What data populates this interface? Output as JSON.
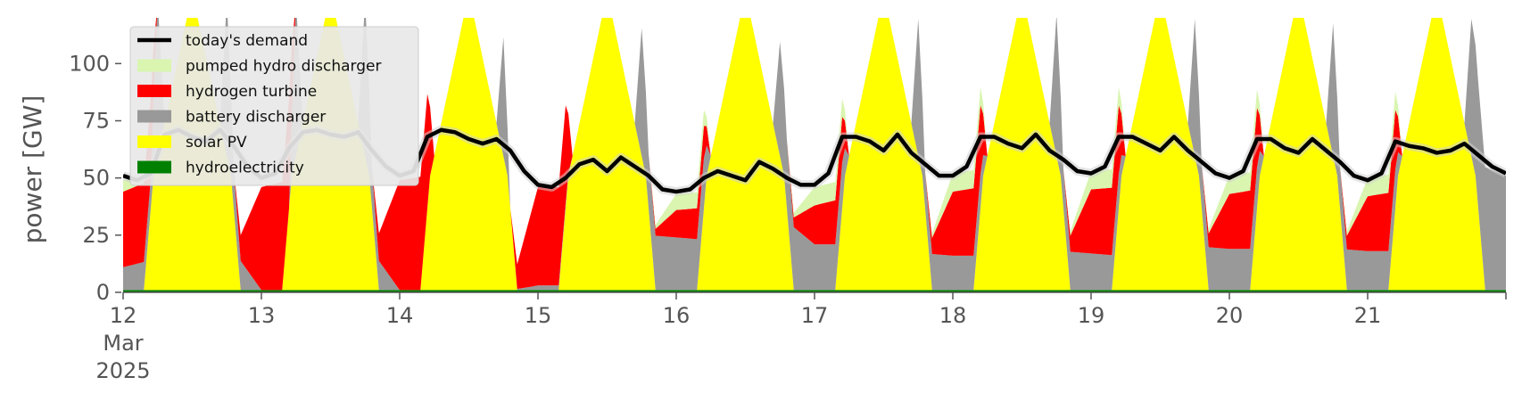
{
  "chart_data": {
    "type": "area",
    "ylabel": "power [GW]",
    "xlabel": "",
    "ylim": [
      0,
      120
    ],
    "xlim": [
      0,
      10
    ],
    "y_ticks": [
      0,
      25,
      50,
      75,
      100
    ],
    "x_ticks": [
      {
        "pos": 0,
        "lines": [
          "12",
          "Mar",
          "2025"
        ]
      },
      {
        "pos": 1,
        "lines": [
          "13"
        ]
      },
      {
        "pos": 2,
        "lines": [
          "14"
        ]
      },
      {
        "pos": 3,
        "lines": [
          "15"
        ]
      },
      {
        "pos": 4,
        "lines": [
          "16"
        ]
      },
      {
        "pos": 5,
        "lines": [
          "17"
        ]
      },
      {
        "pos": 6,
        "lines": [
          "18"
        ]
      },
      {
        "pos": 7,
        "lines": [
          "19"
        ]
      },
      {
        "pos": 8,
        "lines": [
          "20"
        ]
      },
      {
        "pos": 9,
        "lines": [
          "21"
        ]
      },
      {
        "pos": 10,
        "lines": [
          ""
        ]
      }
    ],
    "grid": false,
    "legend_placement": "top-left",
    "background_color": "#ffffff",
    "legend": [
      {
        "label": "today's demand",
        "color": "#000000",
        "kind": "line"
      },
      {
        "label": "pumped hydro discharger",
        "color": "#d9f5b0",
        "kind": "patch"
      },
      {
        "label": "hydrogen turbine",
        "color": "#ff0000",
        "kind": "patch"
      },
      {
        "label": "battery discharger",
        "color": "#999999",
        "kind": "patch"
      },
      {
        "label": "solar PV",
        "color": "#ffff00",
        "kind": "patch"
      },
      {
        "label": "hydroelectricity",
        "color": "#008000",
        "kind": "patch"
      }
    ],
    "stack_order": [
      "hydroelectricity",
      "solar PV",
      "battery discharger",
      "hydrogen turbine",
      "pumped hydro discharger"
    ],
    "series": [
      {
        "name": "hydroelectricity",
        "color": "#008000",
        "x": [
          0,
          10
        ],
        "values": [
          1,
          1
        ]
      },
      {
        "name": "solar PV",
        "color": "#ffff00",
        "x": [
          0,
          0.15,
          0.22,
          0.5,
          0.78,
          0.85,
          1,
          1.15,
          1.22,
          1.5,
          1.78,
          1.85,
          2,
          2.15,
          2.22,
          2.5,
          2.78,
          2.85,
          3,
          3.15,
          3.22,
          3.5,
          3.78,
          3.85,
          4,
          4.15,
          4.22,
          4.5,
          4.78,
          4.85,
          5,
          5.15,
          5.22,
          5.5,
          5.78,
          5.85,
          6,
          6.15,
          6.22,
          6.5,
          6.78,
          6.85,
          7,
          7.15,
          7.22,
          7.5,
          7.78,
          7.85,
          8,
          8.15,
          8.22,
          8.5,
          8.78,
          8.85,
          9,
          9.15,
          9.22,
          9.5,
          9.78,
          9.85,
          10
        ],
        "values": [
          0,
          0,
          50,
          130,
          50,
          0,
          0,
          0,
          50,
          130,
          50,
          0,
          0,
          0,
          50,
          130,
          50,
          0,
          0,
          0,
          50,
          130,
          50,
          0,
          0,
          0,
          50,
          130,
          50,
          0,
          0,
          0,
          50,
          130,
          50,
          0,
          0,
          0,
          50,
          130,
          50,
          0,
          0,
          0,
          50,
          130,
          50,
          0,
          0,
          0,
          50,
          130,
          50,
          0,
          0,
          0,
          50,
          130,
          50,
          0,
          0
        ]
      },
      {
        "name": "battery discharger",
        "color": "#999999",
        "x": [
          0,
          0.2,
          0.25,
          0.3,
          0.7,
          0.75,
          0.8,
          1,
          1.2,
          1.25,
          1.3,
          1.7,
          1.75,
          1.8,
          2,
          2.2,
          2.25,
          2.3,
          2.7,
          2.75,
          2.8,
          3,
          3.2,
          3.25,
          3.3,
          3.7,
          3.75,
          3.8,
          4,
          4.2,
          4.25,
          4.3,
          4.7,
          4.75,
          4.8,
          5,
          5.2,
          5.25,
          5.3,
          5.7,
          5.75,
          5.8,
          6,
          6.2,
          6.25,
          6.3,
          6.7,
          6.75,
          6.8,
          7,
          7.2,
          7.25,
          7.3,
          7.7,
          7.75,
          7.8,
          8,
          8.2,
          8.25,
          8.3,
          8.7,
          8.75,
          8.8,
          9,
          9.2,
          9.25,
          9.3,
          9.7,
          9.75,
          9.8,
          10
        ],
        "values": [
          10,
          13,
          68,
          0,
          0,
          68,
          17,
          0,
          0,
          68,
          0,
          0,
          68,
          17,
          0,
          0,
          0,
          0,
          0,
          52,
          0,
          2,
          2,
          0,
          0,
          0,
          56,
          24,
          23,
          22,
          0,
          0,
          0,
          50,
          30,
          20,
          20,
          0,
          0,
          0,
          60,
          16,
          15,
          15,
          0,
          0,
          0,
          62,
          17,
          16,
          15,
          0,
          0,
          0,
          60,
          19,
          18,
          18,
          0,
          0,
          0,
          58,
          18,
          17,
          17,
          0,
          0,
          0,
          60,
          55,
          50
        ]
      },
      {
        "name": "hydrogen turbine",
        "color": "#ff0000",
        "x": [
          0,
          0.2,
          0.25,
          0.3,
          0.7,
          0.75,
          0.8,
          1,
          1.2,
          1.25,
          1.3,
          1.7,
          1.75,
          1.8,
          2,
          2.2,
          2.25,
          2.3,
          2.7,
          2.75,
          2.8,
          3,
          3.2,
          3.25,
          3.3,
          3.7,
          3.75,
          3.8,
          4,
          4.2,
          4.25,
          4.3,
          4.7,
          4.75,
          4.8,
          5,
          5.2,
          5.25,
          5.3,
          5.7,
          5.75,
          5.8,
          6,
          6.2,
          6.25,
          6.3,
          6.7,
          6.75,
          6.8,
          7,
          7.2,
          7.25,
          7.3,
          7.7,
          7.75,
          7.8,
          8,
          8.2,
          8.25,
          8.3,
          8.7,
          8.75,
          8.8,
          9,
          9.2,
          9.25,
          9.3,
          9.7,
          9.75,
          9.8,
          10
        ],
        "values": [
          33,
          35,
          0,
          0,
          0,
          0,
          0,
          45,
          48,
          0,
          0,
          0,
          0,
          0,
          48,
          50,
          0,
          0,
          0,
          0,
          0,
          43,
          43,
          0,
          0,
          0,
          0,
          0,
          12,
          14,
          0,
          0,
          0,
          0,
          0,
          17,
          20,
          0,
          0,
          0,
          0,
          0,
          28,
          30,
          0,
          0,
          0,
          0,
          0,
          28,
          30,
          0,
          0,
          0,
          0,
          0,
          24,
          26,
          0,
          0,
          0,
          0,
          0,
          24,
          26,
          0,
          0,
          0,
          0,
          0,
          0
        ]
      },
      {
        "name": "pumped hydro discharger",
        "color": "#d9f5b0",
        "x": [
          0,
          0.2,
          0.25,
          0.3,
          0.7,
          0.75,
          0.8,
          1,
          1.2,
          1.25,
          1.3,
          1.7,
          1.75,
          1.8,
          2,
          2.2,
          2.25,
          2.3,
          2.7,
          2.75,
          2.8,
          3,
          3.2,
          3.25,
          3.3,
          3.7,
          3.75,
          3.8,
          4,
          4.2,
          4.25,
          4.3,
          4.7,
          4.75,
          4.8,
          5,
          5.2,
          5.25,
          5.3,
          5.7,
          5.75,
          5.8,
          6,
          6.2,
          6.25,
          6.3,
          6.7,
          6.75,
          6.8,
          7,
          7.2,
          7.25,
          7.3,
          7.7,
          7.75,
          7.8,
          8,
          8.2,
          8.25,
          8.3,
          8.7,
          8.75,
          8.8,
          9,
          9.2,
          9.25,
          9.3,
          9.7,
          9.75,
          9.8,
          10
        ],
        "values": [
          5,
          2,
          0,
          0,
          0,
          0,
          0,
          0,
          0,
          0,
          0,
          0,
          0,
          0,
          0,
          0,
          0,
          0,
          0,
          0,
          0,
          0,
          0,
          0,
          0,
          0,
          0,
          0,
          7,
          7,
          0,
          0,
          0,
          0,
          0,
          8,
          8,
          0,
          0,
          0,
          0,
          0,
          8,
          8,
          0,
          0,
          0,
          0,
          0,
          8,
          8,
          0,
          0,
          0,
          0,
          0,
          8,
          8,
          0,
          0,
          0,
          0,
          0,
          8,
          8,
          0,
          0,
          0,
          0,
          0,
          0
        ]
      },
      {
        "name": "today's demand",
        "color": "#000000",
        "x": [
          0,
          0.1,
          0.2,
          0.3,
          0.4,
          0.5,
          0.6,
          0.7,
          0.8,
          0.9,
          1,
          1.1,
          1.2,
          1.3,
          1.4,
          1.5,
          1.6,
          1.7,
          1.8,
          1.9,
          2,
          2.1,
          2.2,
          2.3,
          2.4,
          2.5,
          2.6,
          2.7,
          2.8,
          2.9,
          3,
          3.1,
          3.2,
          3.3,
          3.4,
          3.5,
          3.6,
          3.7,
          3.8,
          3.9,
          4,
          4.1,
          4.2,
          4.3,
          4.4,
          4.5,
          4.6,
          4.7,
          4.8,
          4.9,
          5,
          5.1,
          5.2,
          5.3,
          5.4,
          5.5,
          5.6,
          5.7,
          5.8,
          5.9,
          6,
          6.1,
          6.2,
          6.3,
          6.4,
          6.5,
          6.6,
          6.7,
          6.8,
          6.9,
          7,
          7.1,
          7.2,
          7.3,
          7.4,
          7.5,
          7.6,
          7.7,
          7.8,
          7.9,
          8,
          8.1,
          8.2,
          8.3,
          8.4,
          8.5,
          8.6,
          8.7,
          8.8,
          8.9,
          9,
          9.1,
          9.2,
          9.3,
          9.4,
          9.5,
          9.6,
          9.7,
          9.8,
          9.9,
          10
        ],
        "values": [
          51,
          49,
          52,
          69,
          71,
          68,
          66,
          71,
          64,
          55,
          50,
          52,
          63,
          70,
          71,
          69,
          68,
          70,
          62,
          55,
          51,
          53,
          68,
          71,
          70,
          67,
          65,
          67,
          62,
          53,
          47,
          46,
          50,
          56,
          58,
          53,
          59,
          55,
          51,
          45,
          44,
          45,
          50,
          53,
          51,
          49,
          57,
          54,
          50,
          47,
          47,
          52,
          68,
          68,
          66,
          62,
          69,
          61,
          56,
          51,
          51,
          55,
          68,
          68,
          65,
          63,
          69,
          62,
          58,
          53,
          52,
          55,
          68,
          68,
          65,
          62,
          68,
          62,
          57,
          52,
          50,
          53,
          67,
          67,
          63,
          61,
          67,
          62,
          57,
          51,
          49,
          52,
          66,
          64,
          63,
          61,
          62,
          65,
          60,
          55,
          52
        ]
      }
    ]
  }
}
